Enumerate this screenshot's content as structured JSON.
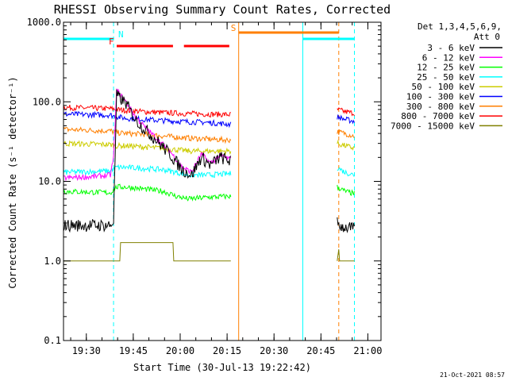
{
  "chart_data": {
    "type": "line",
    "title": "RHESSI Observing Summary Count Rates, Corrected",
    "xlabel": "Start Time (30-Jul-13 19:22:42)",
    "ylabel": "Corrected Count Rate (s⁻¹ detector⁻¹)",
    "ylim": [
      0.1,
      1000
    ],
    "yscale": "log",
    "y_ticks": [
      {
        "value": 0.1,
        "label": "0.1"
      },
      {
        "value": 1,
        "label": "1.0"
      },
      {
        "value": 10,
        "label": "10.0"
      },
      {
        "value": 100,
        "label": "100.0"
      },
      {
        "value": 1000,
        "label": "1000.0"
      }
    ],
    "xlim_minutes": [
      0,
      101.5
    ],
    "x_ticks": [
      {
        "minute": 7.3,
        "label": "19:30"
      },
      {
        "minute": 22.3,
        "label": "19:45"
      },
      {
        "minute": 37.3,
        "label": "20:00"
      },
      {
        "minute": 52.3,
        "label": "20:15"
      },
      {
        "minute": 67.3,
        "label": "20:30"
      },
      {
        "minute": 82.3,
        "label": "20:45"
      },
      {
        "minute": 97.3,
        "label": "21:00"
      }
    ],
    "legend_header": [
      "Det 1,3,4,5,6,9,",
      "Att 0"
    ],
    "legend_placement": "right",
    "date_stamp": "21-Oct-2021 08:57",
    "data_gaps_minutes": [
      [
        53.5,
        87.5
      ]
    ],
    "series": [
      {
        "name": "3 - 6 keV",
        "color": "#000000",
        "x": [
          0,
          15,
          16,
          17,
          20,
          23,
          26,
          30,
          34,
          38,
          41,
          44,
          47,
          50,
          53.5,
          87.5,
          89,
          91,
          93
        ],
        "y": [
          2.8,
          2.8,
          3.2,
          120,
          95,
          60,
          45,
          32,
          22,
          14,
          12,
          20,
          16,
          20,
          18,
          3.0,
          2.7,
          2.6,
          2.5
        ]
      },
      {
        "name": "6 - 12 keV",
        "color": "#ff00ff",
        "x": [
          0,
          10,
          15,
          16,
          17,
          20,
          23,
          26,
          30,
          34,
          38,
          41,
          44,
          47,
          50,
          53.5
        ],
        "y": [
          11,
          11.5,
          12,
          20,
          140,
          100,
          65,
          48,
          34,
          24,
          15,
          13,
          22,
          17,
          21,
          19
        ]
      },
      {
        "name": "12 - 25 keV",
        "color": "#00ff00",
        "x": [
          0,
          15,
          17,
          20,
          26,
          32,
          36,
          40,
          46,
          53.5,
          87.5,
          90,
          93
        ],
        "y": [
          7.5,
          7.2,
          8.5,
          8.5,
          8,
          7.5,
          6.5,
          6.0,
          6.3,
          6.5,
          8.5,
          7.5,
          7.0
        ]
      },
      {
        "name": "25 - 50 keV",
        "color": "#00ffff",
        "x": [
          0,
          15,
          17,
          20,
          26,
          32,
          36,
          40,
          46,
          53.5,
          87.5,
          90,
          93
        ],
        "y": [
          13,
          13.5,
          15,
          15,
          14.5,
          14,
          13,
          12,
          12,
          12.5,
          15,
          13,
          12
        ]
      },
      {
        "name": "50 - 100 keV",
        "color": "#cccc00",
        "x": [
          0,
          15,
          17,
          20,
          26,
          32,
          36,
          40,
          46,
          53.5,
          87.5,
          90,
          93
        ],
        "y": [
          30,
          29,
          28,
          28,
          27,
          26,
          25,
          24,
          24,
          24,
          30,
          28,
          26
        ]
      },
      {
        "name": "100 - 300 keV",
        "color": "#0000ff",
        "x": [
          0,
          15,
          17,
          20,
          26,
          32,
          36,
          40,
          46,
          53.5,
          87.5,
          90,
          93
        ],
        "y": [
          70,
          68,
          65,
          62,
          60,
          58,
          57,
          56,
          55,
          52,
          65,
          60,
          57
        ]
      },
      {
        "name": "300 - 800 keV",
        "color": "#ff7f00",
        "x": [
          0,
          15,
          17,
          20,
          26,
          32,
          36,
          40,
          46,
          53.5,
          87.5,
          90,
          93
        ],
        "y": [
          45,
          43,
          41,
          40,
          39,
          37,
          36,
          35,
          34,
          33,
          42,
          40,
          37
        ]
      },
      {
        "name": "800 - 7000 keV",
        "color": "#ff0000",
        "x": [
          0,
          15,
          17,
          20,
          26,
          32,
          36,
          40,
          46,
          53.5,
          87.5,
          90,
          93
        ],
        "y": [
          85,
          82,
          80,
          78,
          75,
          73,
          72,
          71,
          70,
          69,
          80,
          75,
          72
        ]
      },
      {
        "name": "7000 - 15000 keV",
        "color": "#808000",
        "x": [
          0,
          18,
          18.2,
          35,
          35.2,
          53.5,
          87.5,
          88,
          88.2,
          93
        ],
        "y": [
          1.0,
          1.0,
          1.7,
          1.7,
          1.0,
          1.0,
          1.0,
          1.4,
          1.0,
          1.0
        ]
      }
    ],
    "flags": [
      {
        "letter": "N",
        "color": "#00ffff",
        "segments": [
          [
            0,
            16
          ],
          [
            76.5,
            93
          ]
        ]
      },
      {
        "letter": "F",
        "color": "#ff0000",
        "segments": [
          [
            17,
            35
          ],
          [
            38.5,
            53
          ]
        ]
      },
      {
        "letter": "S",
        "color": "#ff7f00",
        "segments": [
          [
            56,
            77
          ],
          [
            77,
            88
          ]
        ]
      }
    ],
    "vertical_markers": [
      {
        "minute": 0,
        "color": "#00ffff",
        "style": "solid"
      },
      {
        "minute": 16,
        "color": "#00ffff",
        "style": "dashed"
      },
      {
        "minute": 56,
        "color": "#ff7f00",
        "style": "solid"
      },
      {
        "minute": 76.5,
        "color": "#00ffff",
        "style": "solid"
      },
      {
        "minute": 88,
        "color": "#ff7f00",
        "style": "dashed"
      },
      {
        "minute": 93,
        "color": "#00ffff",
        "style": "dashed"
      }
    ]
  }
}
